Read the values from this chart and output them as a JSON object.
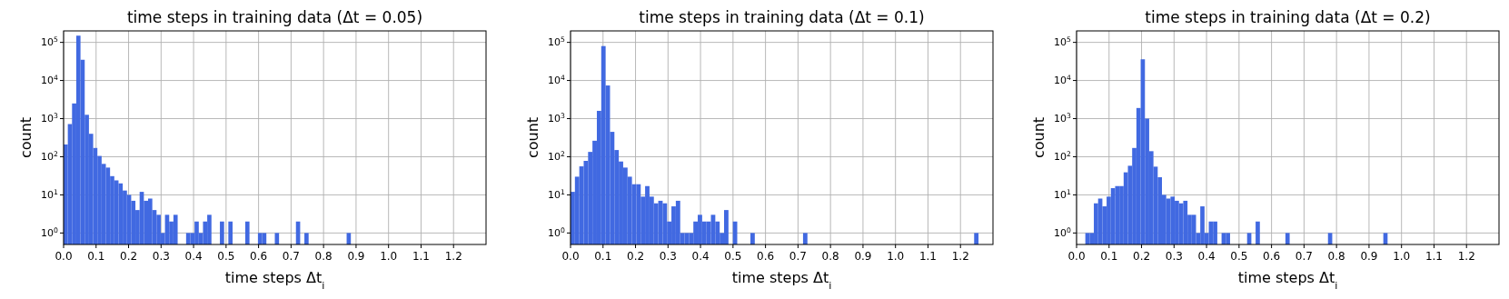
{
  "chart_data": [
    {
      "type": "histogram",
      "title": "time steps in training data (Δt = 0.05)",
      "xlabel": "time steps Δt$_{i}$",
      "ylabel": "count",
      "log": "y",
      "grid": true,
      "color": "#4169e1",
      "xlim": [
        0,
        1.3
      ],
      "ylim": [
        0.5,
        200000
      ],
      "xticks": [
        {
          "value": 0,
          "label": "0.0"
        },
        {
          "value": 0.1,
          "label": "0.1"
        },
        {
          "value": 0.2,
          "label": "0.2"
        },
        {
          "value": 0.3,
          "label": "0.3"
        },
        {
          "value": 0.4,
          "label": "0.4"
        },
        {
          "value": 0.5,
          "label": "0.5"
        },
        {
          "value": 0.6,
          "label": "0.6"
        },
        {
          "value": 0.7,
          "label": "0.7"
        },
        {
          "value": 0.8,
          "label": "0.8"
        },
        {
          "value": 0.9,
          "label": "0.9"
        },
        {
          "value": 1,
          "label": "1.0"
        },
        {
          "value": 1.1,
          "label": "1.1"
        },
        {
          "value": 1.2,
          "label": "1.2"
        }
      ],
      "yticks": [
        {
          "value": 1,
          "label": "10$^{0}$"
        },
        {
          "value": 10,
          "label": "10$^{1}$"
        },
        {
          "value": 100,
          "label": "10$^{2}$"
        },
        {
          "value": 1000,
          "label": "10$^{3}$"
        },
        {
          "value": 10000,
          "label": "10$^{4}$"
        },
        {
          "value": 100000,
          "label": "10$^{5}$"
        }
      ],
      "bins": [
        0,
        0.013,
        0.026,
        0.039,
        0.052,
        0.065,
        0.078,
        0.091,
        0.104,
        0.117,
        0.13,
        0.143,
        0.156,
        0.169,
        0.182,
        0.195,
        0.208,
        0.221,
        0.234,
        0.247,
        0.26,
        0.273,
        0.286,
        0.299,
        0.312,
        0.325,
        0.338,
        0.351,
        0.364,
        0.377,
        0.39,
        0.403,
        0.416,
        0.429,
        0.442,
        0.455,
        0.468,
        0.481,
        0.494,
        0.507,
        0.52,
        0.533,
        0.546,
        0.559,
        0.572,
        0.585,
        0.598,
        0.611,
        0.624,
        0.637,
        0.65,
        0.663,
        0.676,
        0.689,
        0.702,
        0.715,
        0.728,
        0.741,
        0.754,
        0.767,
        0.78,
        0.793,
        0.806,
        0.819,
        0.832,
        0.845,
        0.858,
        0.871,
        0.884
      ],
      "values": [
        210,
        720,
        2500,
        150000,
        35000,
        1260,
        400,
        170,
        105,
        65,
        52,
        31,
        24,
        20,
        13,
        10,
        7,
        4,
        12,
        7,
        8,
        4,
        3,
        1,
        3,
        2,
        3,
        null,
        null,
        1,
        1,
        2,
        1,
        2,
        3,
        null,
        null,
        2,
        null,
        2,
        null,
        null,
        null,
        2,
        null,
        null,
        1,
        1,
        null,
        null,
        1,
        null,
        null,
        null,
        null,
        2,
        null,
        1,
        null,
        null,
        null,
        null,
        null,
        null,
        null,
        null,
        null,
        1
      ]
    },
    {
      "type": "histogram",
      "title": "time steps in training data (Δt = 0.1)",
      "xlabel": "time steps Δt$_{i}$",
      "ylabel": "count",
      "log": "y",
      "grid": true,
      "color": "#4169e1",
      "xlim": [
        0,
        1.3
      ],
      "ylim": [
        0.5,
        200000
      ],
      "xticks": [
        {
          "value": 0,
          "label": "0.0"
        },
        {
          "value": 0.1,
          "label": "0.1"
        },
        {
          "value": 0.2,
          "label": "0.2"
        },
        {
          "value": 0.3,
          "label": "0.3"
        },
        {
          "value": 0.4,
          "label": "0.4"
        },
        {
          "value": 0.5,
          "label": "0.5"
        },
        {
          "value": 0.6,
          "label": "0.6"
        },
        {
          "value": 0.7,
          "label": "0.7"
        },
        {
          "value": 0.8,
          "label": "0.8"
        },
        {
          "value": 0.9,
          "label": "0.9"
        },
        {
          "value": 1,
          "label": "1.0"
        },
        {
          "value": 1.1,
          "label": "1.1"
        },
        {
          "value": 1.2,
          "label": "1.2"
        }
      ],
      "yticks": [
        {
          "value": 1,
          "label": "10$^{0}$"
        },
        {
          "value": 10,
          "label": "10$^{1}$"
        },
        {
          "value": 100,
          "label": "10$^{2}$"
        },
        {
          "value": 1000,
          "label": "10$^{3}$"
        },
        {
          "value": 10000,
          "label": "10$^{4}$"
        },
        {
          "value": 100000,
          "label": "10$^{5}$"
        }
      ],
      "bins": [
        0,
        0.0135,
        0.027,
        0.0405,
        0.054,
        0.0675,
        0.081,
        0.0945,
        0.108,
        0.1215,
        0.135,
        0.1485,
        0.162,
        0.1755,
        0.189,
        0.2025,
        0.216,
        0.2295,
        0.243,
        0.2565,
        0.27,
        0.2835,
        0.297,
        0.3105,
        0.324,
        0.3375,
        0.351,
        0.3645,
        0.378,
        0.3915,
        0.405,
        0.4185,
        0.432,
        0.4455,
        0.459,
        0.4725,
        0.486,
        0.4995,
        0.513,
        0.5265,
        0.54,
        0.5535,
        0.567,
        0.5805,
        0.594,
        0.6075,
        0.621,
        0.6345,
        0.648,
        0.6615,
        0.675,
        0.6885,
        0.702,
        0.7155,
        0.729,
        0.7425,
        0.756,
        0.7695,
        0.783,
        0.7965,
        0.81,
        0.8235,
        0.837,
        0.8505,
        0.864,
        0.8775,
        0.891,
        0.9045,
        0.918,
        0.9315,
        0.945,
        0.9585,
        0.972,
        0.9855,
        0.999,
        1.0125,
        1.026,
        1.0395,
        1.053,
        1.0665,
        1.08,
        1.0935,
        1.107,
        1.1205,
        1.134,
        1.1475,
        1.161,
        1.1745,
        1.188,
        1.2015,
        1.215,
        1.2285,
        1.242,
        1.2555
      ],
      "values": [
        12,
        30,
        56,
        78,
        134,
        263,
        1600,
        80000,
        7400,
        450,
        150,
        75,
        52,
        30,
        19,
        19,
        9,
        17,
        9,
        6,
        7,
        6,
        2,
        5,
        7,
        1,
        1,
        1,
        2,
        3,
        2,
        2,
        3,
        2,
        1,
        4,
        null,
        2,
        null,
        null,
        null,
        1,
        null,
        null,
        null,
        null,
        null,
        null,
        null,
        null,
        null,
        null,
        null,
        1,
        null,
        null,
        null,
        null,
        null,
        null,
        null,
        null,
        null,
        null,
        null,
        null,
        null,
        null,
        null,
        null,
        null,
        null,
        null,
        null,
        null,
        null,
        null,
        null,
        null,
        null,
        null,
        null,
        null,
        null,
        null,
        null,
        null,
        null,
        null,
        null,
        null,
        null,
        1
      ]
    },
    {
      "type": "histogram",
      "title": "time steps in training data (Δt = 0.2)",
      "xlabel": "time steps Δt$_{i}$",
      "ylabel": "count",
      "log": "y",
      "grid": true,
      "color": "#4169e1",
      "xlim": [
        0,
        1.3
      ],
      "ylim": [
        0.5,
        200000
      ],
      "xticks": [
        {
          "value": 0,
          "label": "0.0"
        },
        {
          "value": 0.1,
          "label": "0.1"
        },
        {
          "value": 0.2,
          "label": "0.2"
        },
        {
          "value": 0.3,
          "label": "0.3"
        },
        {
          "value": 0.4,
          "label": "0.4"
        },
        {
          "value": 0.5,
          "label": "0.5"
        },
        {
          "value": 0.6,
          "label": "0.6"
        },
        {
          "value": 0.7,
          "label": "0.7"
        },
        {
          "value": 0.8,
          "label": "0.8"
        },
        {
          "value": 0.9,
          "label": "0.9"
        },
        {
          "value": 1,
          "label": "1.0"
        },
        {
          "value": 1.1,
          "label": "1.1"
        },
        {
          "value": 1.2,
          "label": "1.2"
        }
      ],
      "yticks": [
        {
          "value": 1,
          "label": "10$^{0}$"
        },
        {
          "value": 10,
          "label": "10$^{1}$"
        },
        {
          "value": 100,
          "label": "10$^{2}$"
        },
        {
          "value": 1000,
          "label": "10$^{3}$"
        },
        {
          "value": 10000,
          "label": "10$^{4}$"
        },
        {
          "value": 100000,
          "label": "10$^{5}$"
        }
      ],
      "bins": [
        0.027,
        0.0401,
        0.0532,
        0.0663,
        0.0794,
        0.0925,
        0.1056,
        0.1187,
        0.1318,
        0.1449,
        0.158,
        0.1711,
        0.1842,
        0.1973,
        0.2104,
        0.2235,
        0.2366,
        0.2497,
        0.2628,
        0.2759,
        0.289,
        0.3021,
        0.3152,
        0.3283,
        0.3414,
        0.3545,
        0.3676,
        0.3807,
        0.3938,
        0.4069,
        0.42,
        0.4331,
        0.4462,
        0.4593,
        0.4724,
        0.4855,
        0.4986,
        0.5117,
        0.5248,
        0.5379,
        0.551,
        0.5641,
        0.5772,
        0.5903,
        0.6034,
        0.6165,
        0.6296,
        0.6427,
        0.6558,
        0.6689,
        0.682,
        0.6951,
        0.7082,
        0.7213,
        0.7344,
        0.7475,
        0.7606,
        0.7737,
        0.7868,
        0.7999,
        0.813,
        0.8261,
        0.8392,
        0.8523,
        0.8654,
        0.8785,
        0.8916,
        0.9047,
        0.9178,
        0.9309,
        0.944,
        0.9571
      ],
      "values": [
        1,
        1,
        6,
        8,
        5,
        9,
        15,
        17,
        17,
        39,
        58,
        170,
        1900,
        36000,
        1000,
        140,
        55,
        29,
        10,
        8,
        9,
        7,
        6,
        7,
        3,
        3,
        1,
        5,
        1,
        2,
        2,
        null,
        1,
        1,
        null,
        null,
        null,
        null,
        1,
        null,
        2,
        null,
        null,
        null,
        null,
        null,
        null,
        1,
        null,
        null,
        null,
        null,
        null,
        null,
        null,
        null,
        null,
        1,
        null,
        null,
        null,
        null,
        null,
        null,
        null,
        null,
        null,
        null,
        null,
        null,
        1
      ]
    }
  ]
}
